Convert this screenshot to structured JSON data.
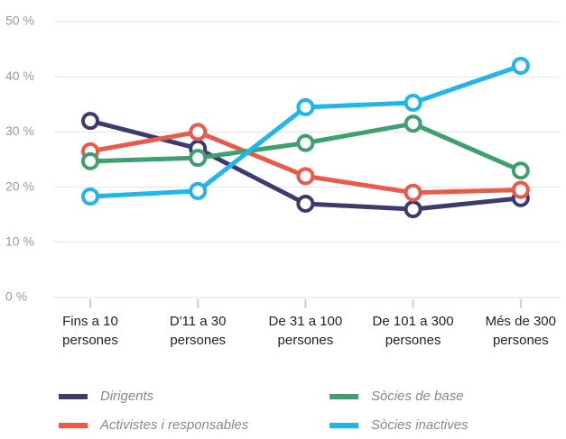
{
  "chart_data": {
    "type": "line",
    "categories": [
      "Fins a 10 persones",
      "D'11 a 30 persones",
      "De 31 a 100 persones",
      "De 101 a 300 persones",
      "Més de 300 persones"
    ],
    "series": [
      {
        "name": "Dirigents",
        "color": "#3d3b6e",
        "values": [
          32,
          27,
          17,
          16,
          18
        ]
      },
      {
        "name": "Activistes i responsables",
        "color": "#ea5a4b",
        "values": [
          26.5,
          30,
          22,
          19,
          19.5
        ]
      },
      {
        "name": "Sòcies de base",
        "color": "#3f9f6f",
        "values": [
          24.7,
          25.3,
          28,
          31.5,
          23
        ]
      },
      {
        "name": "Sòcies inactives",
        "color": "#22b5e8",
        "values": [
          18.3,
          19.3,
          34.5,
          35.3,
          42
        ]
      }
    ],
    "ylim": [
      0,
      50
    ],
    "yticks": [
      {
        "value": 0,
        "label": "0 %"
      },
      {
        "value": 10,
        "label": "10 %"
      },
      {
        "value": 20,
        "label": "20 %"
      },
      {
        "value": 30,
        "label": "30 %"
      },
      {
        "value": 40,
        "label": "40 %"
      },
      {
        "value": 50,
        "label": "50 %"
      }
    ],
    "grid": true
  }
}
